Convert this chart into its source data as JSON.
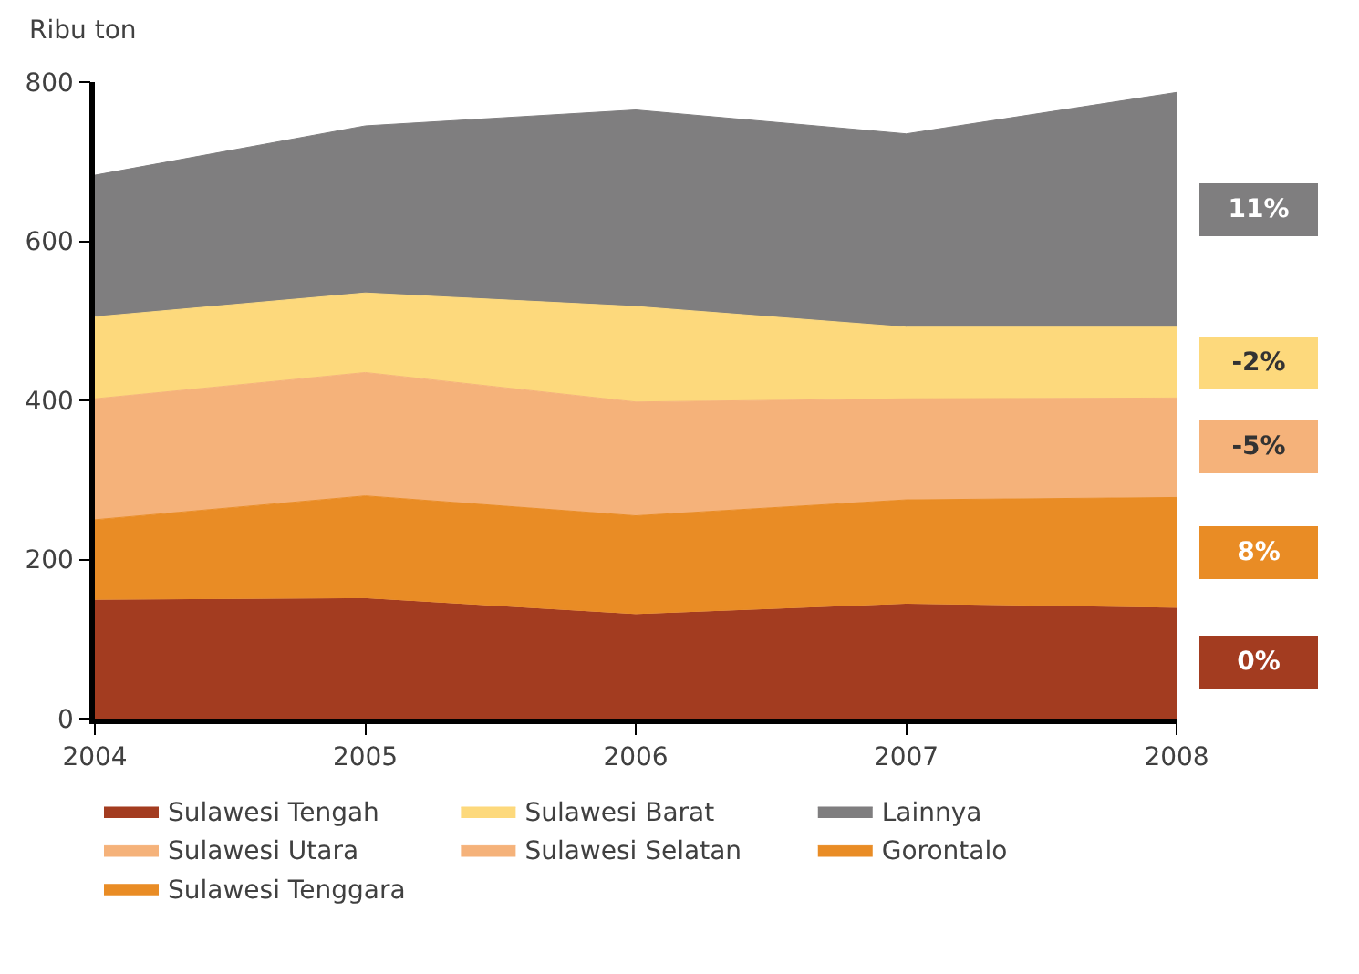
{
  "chart_data": {
    "type": "area",
    "stacked": true,
    "ylabel": "Ribu ton",
    "x": [
      2004,
      2005,
      2006,
      2007,
      2008
    ],
    "xlim": [
      2004,
      2008
    ],
    "xticks": [
      2004,
      2005,
      2006,
      2007,
      2008
    ],
    "ylim": [
      0,
      800
    ],
    "yticks": [
      0,
      200,
      400,
      600,
      800
    ],
    "legend": "bottom",
    "marker": "none",
    "annotations": [
      "11%",
      "-2%",
      "-5%",
      "8%",
      "0%"
    ],
    "series": [
      {
        "name": "Sulawesi Tengah",
        "color": "#a33c20",
        "values": [
          150,
          152,
          132,
          145,
          140
        ]
      },
      {
        "name": "Sulawesi Utara",
        "color": "#f5b27a",
        "values": [
          null,
          null,
          null,
          null,
          null
        ]
      },
      {
        "name": "Gorontalo",
        "color": "#e98c25",
        "values": [
          null,
          null,
          null,
          null,
          null
        ]
      },
      {
        "name": "Sulawesi Tenggara",
        "color": "#e98c25",
        "values": [
          100,
          128,
          123,
          130,
          138
        ]
      },
      {
        "name": "Sulawesi Selatan",
        "color": "#f5b27a",
        "values": [
          152,
          155,
          143,
          127,
          125
        ]
      },
      {
        "name": "Sulawesi Barat",
        "color": "#fdd97c",
        "values": [
          103,
          100,
          120,
          90,
          89
        ]
      },
      {
        "name": "Lainnya",
        "color": "#7f7e7f",
        "values": [
          178,
          210,
          247,
          243,
          295
        ]
      }
    ]
  }
}
